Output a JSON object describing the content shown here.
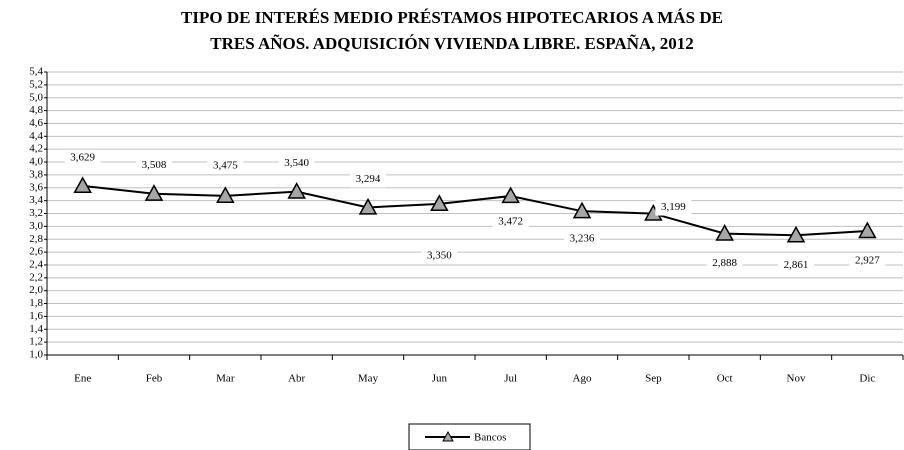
{
  "chart_data": {
    "type": "line",
    "title": [
      "TIPO DE INTERÉS MEDIO PRÉSTAMOS HIPOTECARIOS A MÁS DE",
      "TRES AÑOS. ADQUISICIÓN VIVIENDA LIBRE. ESPAÑA, 2012"
    ],
    "categories": [
      "Ene",
      "Feb",
      "Mar",
      "Abr",
      "May",
      "Jun",
      "Jul",
      "Ago",
      "Sep",
      "Oct",
      "Nov",
      "Dic"
    ],
    "series": [
      {
        "name": "Bancos",
        "color": "#000000",
        "marker_color": "#a6a6a6",
        "values": [
          3.629,
          3.508,
          3.475,
          3.54,
          3.294,
          3.35,
          3.472,
          3.236,
          3.199,
          2.888,
          2.861,
          2.927
        ],
        "value_labels": [
          "3,629",
          "3,508",
          "3,475",
          "3,540",
          "3,294",
          "3,350",
          "3,472",
          "3,236",
          "3,199",
          "2,888",
          "2,861",
          "2,927"
        ]
      }
    ],
    "ylim": [
      1.0,
      5.4
    ],
    "yticks": [
      {
        "value": 1.0,
        "label": "1,0"
      },
      {
        "value": 1.2,
        "label": "1,2"
      },
      {
        "value": 1.4,
        "label": "1,4"
      },
      {
        "value": 1.6,
        "label": "1,6"
      },
      {
        "value": 1.8,
        "label": "1,8"
      },
      {
        "value": 2.0,
        "label": "2,0"
      },
      {
        "value": 2.2,
        "label": "2,2"
      },
      {
        "value": 2.4,
        "label": "2,4"
      },
      {
        "value": 2.6,
        "label": "2,6"
      },
      {
        "value": 2.8,
        "label": "2,8"
      },
      {
        "value": 3.0,
        "label": "3,0"
      },
      {
        "value": 3.2,
        "label": "3,2"
      },
      {
        "value": 3.4,
        "label": "3,4"
      },
      {
        "value": 3.6,
        "label": "3,6"
      },
      {
        "value": 3.8,
        "label": "3,8"
      },
      {
        "value": 4.0,
        "label": "4,0"
      },
      {
        "value": 4.2,
        "label": "4,2"
      },
      {
        "value": 4.4,
        "label": "4,4"
      },
      {
        "value": 4.6,
        "label": "4,6"
      },
      {
        "value": 4.8,
        "label": "4,8"
      },
      {
        "value": 5.0,
        "label": "5,0"
      },
      {
        "value": 5.2,
        "label": "5,2"
      },
      {
        "value": 5.4,
        "label": "5,4"
      }
    ],
    "grid": true,
    "legend": "bottom"
  }
}
